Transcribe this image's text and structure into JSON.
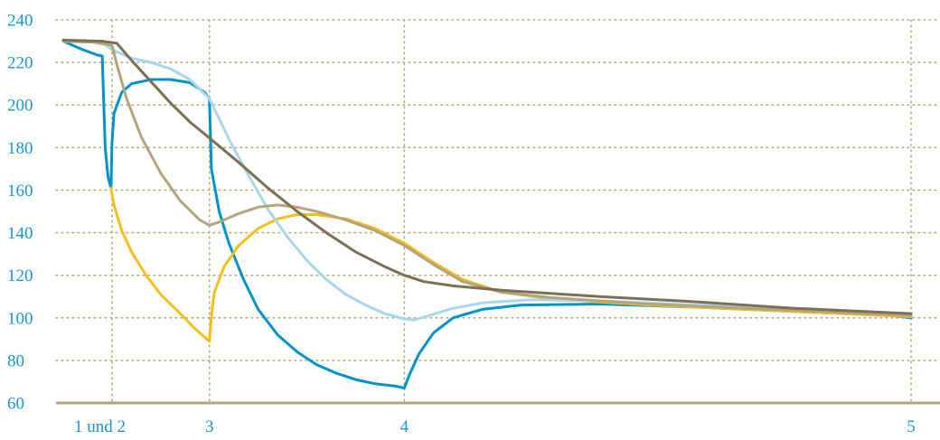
{
  "chart_data": {
    "type": "line",
    "ylim": [
      60,
      240
    ],
    "yticks": [
      60,
      80,
      100,
      120,
      140,
      160,
      180,
      200,
      220,
      240
    ],
    "xlim": [
      0,
      10
    ],
    "xticks": [
      {
        "x": 1.0,
        "label": "1 und 2"
      },
      {
        "x": 2.0,
        "label": "3"
      },
      {
        "x": 4.0,
        "label": "4"
      },
      {
        "x": 9.2,
        "label": "5"
      }
    ],
    "vgrid_x": [
      1.0,
      2.0,
      4.0,
      9.2
    ],
    "grid": "dotted",
    "series": [
      {
        "color": "#0092c8",
        "points": [
          [
            0.5,
            230
          ],
          [
            0.7,
            226
          ],
          [
            0.85,
            223.5
          ],
          [
            0.9,
            223
          ],
          [
            0.93,
            180
          ],
          [
            0.96,
            166
          ],
          [
            0.99,
            161
          ],
          [
            1.0,
            182
          ],
          [
            1.02,
            196
          ],
          [
            1.1,
            206
          ],
          [
            1.2,
            210
          ],
          [
            1.4,
            212
          ],
          [
            1.6,
            212
          ],
          [
            1.8,
            210.5
          ],
          [
            1.95,
            206
          ],
          [
            2.0,
            203
          ],
          [
            2.02,
            170
          ],
          [
            2.1,
            150
          ],
          [
            2.2,
            135
          ],
          [
            2.35,
            118
          ],
          [
            2.5,
            104
          ],
          [
            2.7,
            92
          ],
          [
            2.9,
            84
          ],
          [
            3.1,
            78
          ],
          [
            3.3,
            74
          ],
          [
            3.5,
            71
          ],
          [
            3.7,
            69
          ],
          [
            3.9,
            68
          ],
          [
            4.0,
            67
          ],
          [
            4.05,
            73
          ],
          [
            4.15,
            83
          ],
          [
            4.3,
            93
          ],
          [
            4.5,
            100
          ],
          [
            4.8,
            104
          ],
          [
            5.2,
            106
          ],
          [
            6.0,
            106.5
          ],
          [
            7.0,
            105
          ],
          [
            8.0,
            103
          ],
          [
            9.0,
            101
          ],
          [
            9.2,
            100
          ]
        ]
      },
      {
        "color": "#f5be1b",
        "points": [
          [
            0.99,
            161
          ],
          [
            1.02,
            153
          ],
          [
            1.1,
            141
          ],
          [
            1.2,
            131
          ],
          [
            1.35,
            120
          ],
          [
            1.5,
            111
          ],
          [
            1.7,
            102
          ],
          [
            1.85,
            95
          ],
          [
            2.0,
            89
          ],
          [
            2.02,
            101
          ],
          [
            2.05,
            112
          ],
          [
            2.15,
            124
          ],
          [
            2.3,
            134
          ],
          [
            2.5,
            142
          ],
          [
            2.7,
            146.5
          ],
          [
            2.9,
            148.5
          ],
          [
            3.1,
            148.5
          ],
          [
            3.4,
            146.5
          ],
          [
            3.7,
            142
          ],
          [
            4.0,
            135
          ],
          [
            4.3,
            126
          ],
          [
            4.6,
            118
          ],
          [
            5.0,
            112
          ],
          [
            5.5,
            109
          ],
          [
            6.5,
            106
          ],
          [
            7.5,
            104
          ],
          [
            8.5,
            102
          ],
          [
            9.2,
            100.5
          ]
        ]
      },
      {
        "color": "#a8d6ea",
        "points": [
          [
            0.5,
            230
          ],
          [
            0.9,
            229.5
          ],
          [
            1.0,
            226
          ],
          [
            1.2,
            222
          ],
          [
            1.4,
            220
          ],
          [
            1.6,
            217
          ],
          [
            1.8,
            212
          ],
          [
            2.0,
            203
          ],
          [
            2.2,
            184
          ],
          [
            2.4,
            167
          ],
          [
            2.6,
            151
          ],
          [
            2.8,
            138
          ],
          [
            3.0,
            127
          ],
          [
            3.2,
            118
          ],
          [
            3.4,
            111
          ],
          [
            3.6,
            106
          ],
          [
            3.8,
            102
          ],
          [
            4.0,
            99.5
          ],
          [
            4.1,
            99
          ],
          [
            4.25,
            101
          ],
          [
            4.5,
            104.5
          ],
          [
            4.8,
            107
          ],
          [
            5.3,
            108.5
          ],
          [
            6.0,
            108
          ],
          [
            7.0,
            106
          ],
          [
            8.0,
            104
          ],
          [
            9.2,
            101
          ]
        ]
      },
      {
        "color": "#b3a47e",
        "points": [
          [
            0.5,
            230
          ],
          [
            0.8,
            229.5
          ],
          [
            1.0,
            228
          ],
          [
            1.05,
            219
          ],
          [
            1.15,
            203
          ],
          [
            1.3,
            185
          ],
          [
            1.5,
            168
          ],
          [
            1.7,
            155
          ],
          [
            1.9,
            146
          ],
          [
            2.0,
            143.5
          ],
          [
            2.1,
            145
          ],
          [
            2.3,
            149
          ],
          [
            2.5,
            152
          ],
          [
            2.7,
            153
          ],
          [
            2.9,
            152
          ],
          [
            3.1,
            150
          ],
          [
            3.4,
            146
          ],
          [
            3.7,
            141
          ],
          [
            4.0,
            134
          ],
          [
            4.3,
            125
          ],
          [
            4.6,
            117
          ],
          [
            5.0,
            112
          ],
          [
            5.5,
            109.5
          ],
          [
            6.5,
            106.5
          ],
          [
            7.5,
            104.5
          ],
          [
            8.5,
            102.5
          ],
          [
            9.2,
            101
          ]
        ]
      },
      {
        "color": "#7b6f55",
        "points": [
          [
            0.5,
            230.5
          ],
          [
            0.9,
            230
          ],
          [
            1.05,
            229
          ],
          [
            1.2,
            221
          ],
          [
            1.4,
            211
          ],
          [
            1.6,
            201
          ],
          [
            1.8,
            192
          ],
          [
            2.0,
            184.5
          ],
          [
            2.3,
            173
          ],
          [
            2.6,
            161
          ],
          [
            2.9,
            150
          ],
          [
            3.2,
            140
          ],
          [
            3.5,
            131
          ],
          [
            3.8,
            124
          ],
          [
            4.0,
            120
          ],
          [
            4.2,
            117
          ],
          [
            4.5,
            115
          ],
          [
            5.0,
            113
          ],
          [
            6.0,
            110
          ],
          [
            7.0,
            107.5
          ],
          [
            8.0,
            104.5
          ],
          [
            9.2,
            102
          ]
        ]
      }
    ]
  }
}
